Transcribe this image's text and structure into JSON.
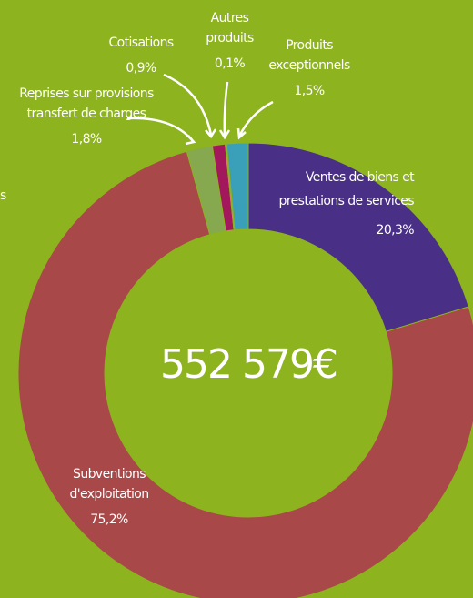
{
  "chart_data": {
    "type": "donut",
    "categories": [
      "Ventes de biens et prestations de services",
      "Subventions d'exploitation",
      "Reprises sur provisions transfert de charges",
      "Cotisations",
      "Autres produits",
      "Produits exceptionnels"
    ],
    "values": [
      20.3,
      75.2,
      1.8,
      0.9,
      0.1,
      1.5
    ],
    "value_labels": [
      "20,3%",
      "75,2%",
      "1,8%",
      "0,9%",
      "0,1%",
      "1,5%"
    ],
    "colors": [
      "#4a2f86",
      "#a84848",
      "#86a84e",
      "#a3175c",
      "#e08a3a",
      "#3a9fb8"
    ],
    "center_label": "552 579€",
    "fragment": "s"
  }
}
